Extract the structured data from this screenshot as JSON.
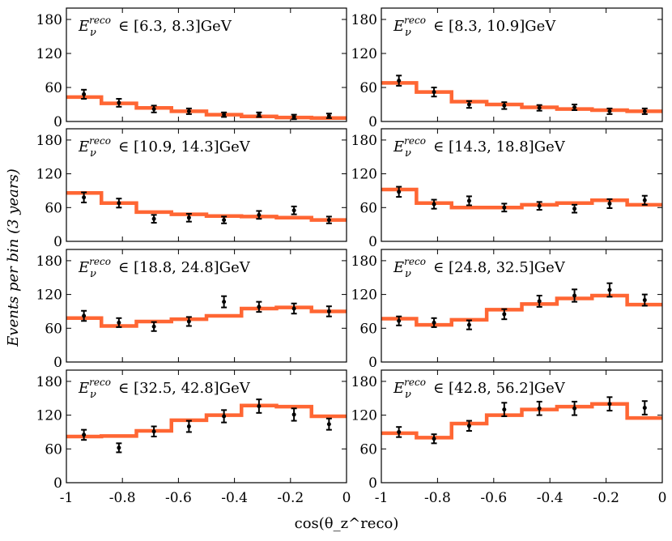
{
  "chart_data": {
    "type": "line",
    "title": "",
    "ylabel": "Events per bin (3 years)",
    "xlabel": "cos(θ_z^reco)",
    "xlim": [
      -1,
      0
    ],
    "ylim": [
      0,
      200
    ],
    "xticks": [
      "-1",
      "-0.8",
      "-0.6",
      "-0.4",
      "-0.2",
      "0"
    ],
    "yticks": [
      "0",
      "60",
      "120",
      "180"
    ],
    "bin_edges": [
      -1,
      -0.875,
      -0.75,
      -0.625,
      -0.5,
      -0.375,
      -0.25,
      -0.125,
      0
    ],
    "bin_centers": [
      -0.9375,
      -0.8125,
      -0.6875,
      -0.5625,
      -0.4375,
      -0.3125,
      -0.1875,
      -0.0625
    ],
    "label_prefix": "E",
    "label_sup": "reco",
    "label_sub": "ν",
    "label_mid": "∈ ",
    "label_unit": "GeV",
    "panels": [
      {
        "range": "[6.3, 8.3]",
        "histogram": [
          43,
          32,
          24,
          18,
          12,
          9,
          7,
          6
        ],
        "data": [
          48,
          33,
          22,
          18,
          12,
          12,
          8,
          10
        ],
        "errors": [
          8,
          7,
          6,
          5,
          4,
          4,
          4,
          4
        ]
      },
      {
        "range": "[8.3, 10.9]",
        "histogram": [
          68,
          52,
          35,
          30,
          25,
          22,
          20,
          18
        ],
        "data": [
          72,
          52,
          30,
          28,
          24,
          25,
          18,
          18
        ],
        "errors": [
          9,
          8,
          6,
          6,
          5,
          5,
          5,
          5
        ]
      },
      {
        "range": "[10.9, 14.3]",
        "histogram": [
          86,
          68,
          52,
          48,
          45,
          44,
          42,
          38
        ],
        "data": [
          78,
          68,
          40,
          42,
          38,
          47,
          55,
          38
        ],
        "errors": [
          9,
          8,
          7,
          7,
          6,
          7,
          7,
          6
        ]
      },
      {
        "range": "[14.3, 18.8]",
        "histogram": [
          92,
          68,
          60,
          60,
          65,
          68,
          73,
          65
        ],
        "data": [
          88,
          66,
          72,
          60,
          63,
          58,
          67,
          73
        ],
        "errors": [
          9,
          8,
          8,
          7,
          7,
          7,
          8,
          8
        ]
      },
      {
        "range": "[18.8, 24.8]",
        "histogram": [
          78,
          64,
          72,
          76,
          82,
          95,
          97,
          90
        ],
        "data": [
          82,
          70,
          63,
          72,
          107,
          98,
          95,
          90
        ],
        "errors": [
          9,
          8,
          8,
          8,
          10,
          9,
          9,
          9
        ]
      },
      {
        "range": "[24.8, 32.5]",
        "histogram": [
          77,
          66,
          75,
          93,
          103,
          113,
          118,
          102
        ],
        "data": [
          73,
          70,
          66,
          85,
          108,
          118,
          128,
          110
        ],
        "errors": [
          8,
          8,
          8,
          9,
          10,
          11,
          12,
          10
        ]
      },
      {
        "range": "[32.5, 42.8]",
        "histogram": [
          82,
          83,
          92,
          111,
          120,
          137,
          135,
          118
        ],
        "data": [
          85,
          62,
          91,
          100,
          118,
          136,
          121,
          104
        ],
        "errors": [
          9,
          8,
          9,
          10,
          11,
          12,
          11,
          10
        ]
      },
      {
        "range": "[42.8, 56.2]",
        "histogram": [
          88,
          80,
          105,
          120,
          130,
          135,
          140,
          115
        ],
        "data": [
          90,
          78,
          101,
          130,
          132,
          132,
          140,
          133
        ],
        "errors": [
          9,
          8,
          9,
          12,
          12,
          12,
          12,
          12
        ]
      }
    ]
  }
}
